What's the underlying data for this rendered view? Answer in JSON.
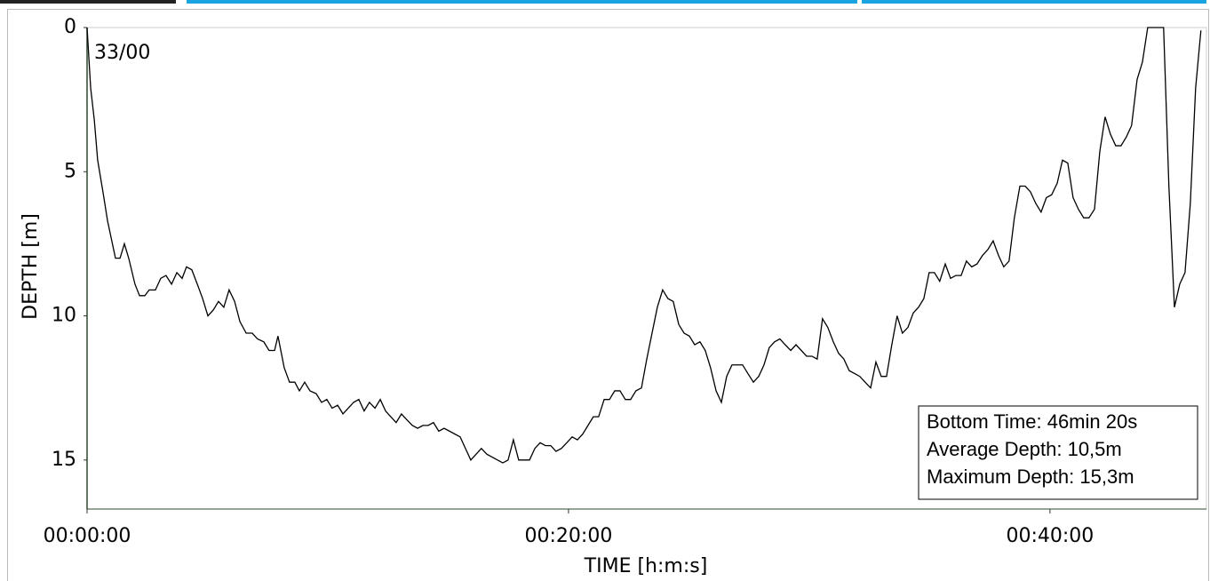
{
  "chart_data": {
    "type": "line",
    "annotation": "33/00",
    "xlabel": "TIME [h:m:s]",
    "ylabel": "DEPTH [m]",
    "stats": [
      "Bottom Time: 46min 20s",
      "Average Depth: 10,5m",
      "Maximum Depth: 15,3m"
    ],
    "color": "#000000",
    "y_inverted": true,
    "xlim": [
      0,
      46.5
    ],
    "ylim": [
      0,
      16.7
    ],
    "xticks": [
      {
        "value": 0,
        "label": "00:00:00"
      },
      {
        "value": 20,
        "label": "00:20:00"
      },
      {
        "value": 40,
        "label": "00:40:00"
      }
    ],
    "yticks": [
      0,
      5,
      10,
      15
    ],
    "x": [
      0,
      0.15,
      0.3,
      0.44,
      0.66,
      0.85,
      1.18,
      1.37,
      1.55,
      1.73,
      1.99,
      2.18,
      2.4,
      2.58,
      2.84,
      3.06,
      3.28,
      3.51,
      3.73,
      3.95,
      4.13,
      4.35,
      4.58,
      4.8,
      5.02,
      5.24,
      5.46,
      5.68,
      5.9,
      6.13,
      6.35,
      6.61,
      6.86,
      7.08,
      7.34,
      7.56,
      7.79,
      7.93,
      8.19,
      8.41,
      8.63,
      8.82,
      9.04,
      9.26,
      9.52,
      9.74,
      9.96,
      10.18,
      10.41,
      10.63,
      10.85,
      11.07,
      11.29,
      11.51,
      11.73,
      11.96,
      12.18,
      12.4,
      12.62,
      12.84,
      13.06,
      13.28,
      13.51,
      13.73,
      13.95,
      14.17,
      14.39,
      14.61,
      14.83,
      15.06,
      15.28,
      15.5,
      15.72,
      15.94,
      16.16,
      16.38,
      16.61,
      16.83,
      17.05,
      17.27,
      17.49,
      17.71,
      17.93,
      18.15,
      18.38,
      18.6,
      18.82,
      19.04,
      19.26,
      19.48,
      19.7,
      19.93,
      20.15,
      20.37,
      20.59,
      20.81,
      21.03,
      21.25,
      21.48,
      21.7,
      21.92,
      22.14,
      22.36,
      22.58,
      22.8,
      23.03,
      23.25,
      23.47,
      23.69,
      23.91,
      24.13,
      24.35,
      24.58,
      24.8,
      25.02,
      25.24,
      25.46,
      25.68,
      25.9,
      26.13,
      26.35,
      26.57,
      26.79,
      27.01,
      27.23,
      27.45,
      27.68,
      27.9,
      28.12,
      28.34,
      28.56,
      28.78,
      29.0,
      29.23,
      29.45,
      29.67,
      29.89,
      30.11,
      30.33,
      30.55,
      30.77,
      31.0,
      31.22,
      31.44,
      31.66,
      31.88,
      32.1,
      32.32,
      32.55,
      32.77,
      32.99,
      33.21,
      33.43,
      33.65,
      33.87,
      34.1,
      34.32,
      34.54,
      34.76,
      34.98,
      35.2,
      35.42,
      35.65,
      35.87,
      36.09,
      36.31,
      36.53,
      36.75,
      36.97,
      37.2,
      37.42,
      37.64,
      37.86,
      38.08,
      38.3,
      38.52,
      38.75,
      38.97,
      39.19,
      39.41,
      39.63,
      39.85,
      40.07,
      40.3,
      40.52,
      40.74,
      40.96,
      41.18,
      41.4,
      41.62,
      41.85,
      42.07,
      42.29,
      42.51,
      42.73,
      42.95,
      43.17,
      43.39,
      43.62,
      43.84,
      44.06,
      44.72,
      44.94,
      45.17,
      45.39,
      45.61,
      45.83,
      46.05,
      46.27
    ],
    "values": [
      0,
      2.1,
      3.2,
      4.6,
      5.7,
      6.7,
      8.0,
      8.0,
      7.5,
      8.0,
      8.9,
      9.3,
      9.3,
      9.1,
      9.1,
      8.7,
      8.6,
      8.9,
      8.5,
      8.7,
      8.3,
      8.4,
      8.9,
      9.4,
      10.0,
      9.8,
      9.5,
      9.7,
      9.1,
      9.5,
      10.2,
      10.6,
      10.6,
      10.8,
      10.9,
      11.2,
      11.2,
      10.7,
      11.8,
      12.3,
      12.3,
      12.6,
      12.3,
      12.6,
      12.7,
      13.0,
      12.9,
      13.2,
      13.1,
      13.4,
      13.2,
      13.0,
      12.9,
      13.3,
      13.0,
      13.2,
      12.9,
      13.3,
      13.5,
      13.7,
      13.4,
      13.6,
      13.8,
      13.9,
      13.8,
      13.8,
      13.7,
      14.0,
      13.9,
      14.0,
      14.1,
      14.2,
      14.6,
      15.0,
      14.8,
      14.6,
      14.8,
      14.9,
      15.0,
      15.1,
      15.0,
      14.3,
      15.0,
      15.0,
      15.0,
      14.6,
      14.4,
      14.5,
      14.5,
      14.7,
      14.6,
      14.4,
      14.2,
      14.3,
      14.1,
      13.8,
      13.5,
      13.5,
      12.9,
      12.9,
      12.6,
      12.6,
      12.9,
      12.9,
      12.6,
      12.5,
      11.5,
      10.6,
      9.7,
      9.1,
      9.4,
      9.5,
      10.3,
      10.6,
      10.7,
      11.0,
      10.9,
      11.2,
      11.8,
      12.6,
      13.0,
      12.1,
      11.7,
      11.7,
      11.7,
      12.0,
      12.3,
      12.1,
      11.7,
      11.1,
      10.9,
      10.8,
      11.0,
      11.2,
      11.0,
      11.2,
      11.4,
      11.4,
      11.5,
      10.1,
      10.4,
      10.9,
      11.3,
      11.5,
      11.9,
      12.0,
      12.1,
      12.3,
      12.5,
      11.6,
      12.1,
      12.1,
      11.0,
      10.0,
      10.6,
      10.4,
      9.9,
      9.7,
      9.4,
      8.5,
      8.5,
      8.8,
      8.2,
      8.7,
      8.6,
      8.6,
      8.1,
      8.3,
      8.2,
      7.9,
      7.7,
      7.4,
      7.9,
      8.3,
      8.1,
      6.6,
      5.5,
      5.5,
      5.7,
      6.1,
      6.4,
      5.9,
      5.8,
      5.4,
      4.6,
      4.7,
      5.9,
      6.3,
      6.6,
      6.6,
      6.3,
      4.3,
      3.1,
      3.7,
      4.1,
      4.1,
      3.8,
      3.4,
      1.8,
      1.2,
      0,
      0,
      5.5,
      9.7,
      8.9,
      8.5,
      6.1,
      2.1,
      0.1
    ]
  }
}
